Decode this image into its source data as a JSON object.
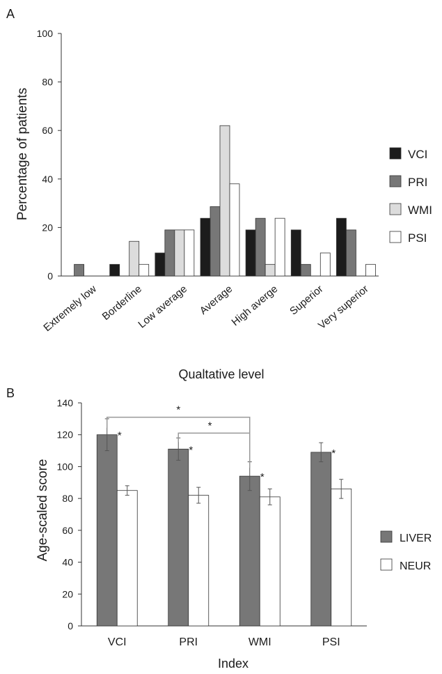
{
  "colors": {
    "VCI": "#1c1c1c",
    "PRI": "#777777",
    "WMI": "#dcdcdc",
    "PSI": "#ffffff",
    "LIVER": "#777777",
    "NEUR": "#ffffff",
    "axis": "#333333",
    "bracket": "#999999"
  },
  "chart_data": [
    {
      "panel_label": "A",
      "type": "bar",
      "xlabel": "Qualtative level",
      "ylabel": "Percentage of patients",
      "ylim": [
        0,
        100
      ],
      "yticks": [
        0,
        20,
        40,
        60,
        80,
        100
      ],
      "grid": false,
      "legend_position": "right",
      "categories": [
        "Extremely low",
        "Borderline",
        "Low average",
        "Average",
        "High averge",
        "Superior",
        "Very superior"
      ],
      "series": [
        {
          "name": "VCI",
          "values": [
            0,
            4.8,
            9.5,
            23.8,
            19,
            19,
            23.8
          ]
        },
        {
          "name": "PRI",
          "values": [
            4.8,
            0,
            19,
            28.6,
            23.8,
            4.8,
            19
          ]
        },
        {
          "name": "WMI",
          "values": [
            0,
            14.3,
            19,
            62,
            4.8,
            0,
            0
          ]
        },
        {
          "name": "PSI",
          "values": [
            0,
            4.8,
            19,
            38,
            23.8,
            9.5,
            4.8
          ]
        }
      ]
    },
    {
      "panel_label": "B",
      "type": "bar",
      "xlabel": "Index",
      "ylabel": "Age-scaled score",
      "ylim": [
        0,
        140
      ],
      "yticks": [
        0,
        20,
        40,
        60,
        80,
        100,
        120,
        140
      ],
      "grid": false,
      "legend_position": "right",
      "categories": [
        "VCI",
        "PRI",
        "WMI",
        "PSI"
      ],
      "series": [
        {
          "name": "LIVER",
          "values": [
            120,
            111,
            94,
            109
          ],
          "errors": [
            10,
            7,
            9,
            6
          ]
        },
        {
          "name": "NEUR",
          "values": [
            85,
            82,
            81,
            86
          ],
          "errors": [
            3,
            5,
            5,
            6
          ]
        }
      ],
      "annotations": [
        {
          "text": "*",
          "target": "LIVER VCI"
        },
        {
          "text": "*",
          "target": "LIVER PRI"
        },
        {
          "text": "*",
          "target": "LIVER WMI"
        },
        {
          "text": "*",
          "target": "LIVER PSI"
        },
        {
          "text": "*",
          "type": "bracket",
          "from": "VCI",
          "to": "WMI"
        },
        {
          "text": "*",
          "type": "bracket",
          "from": "PRI",
          "to": "WMI"
        }
      ]
    }
  ]
}
